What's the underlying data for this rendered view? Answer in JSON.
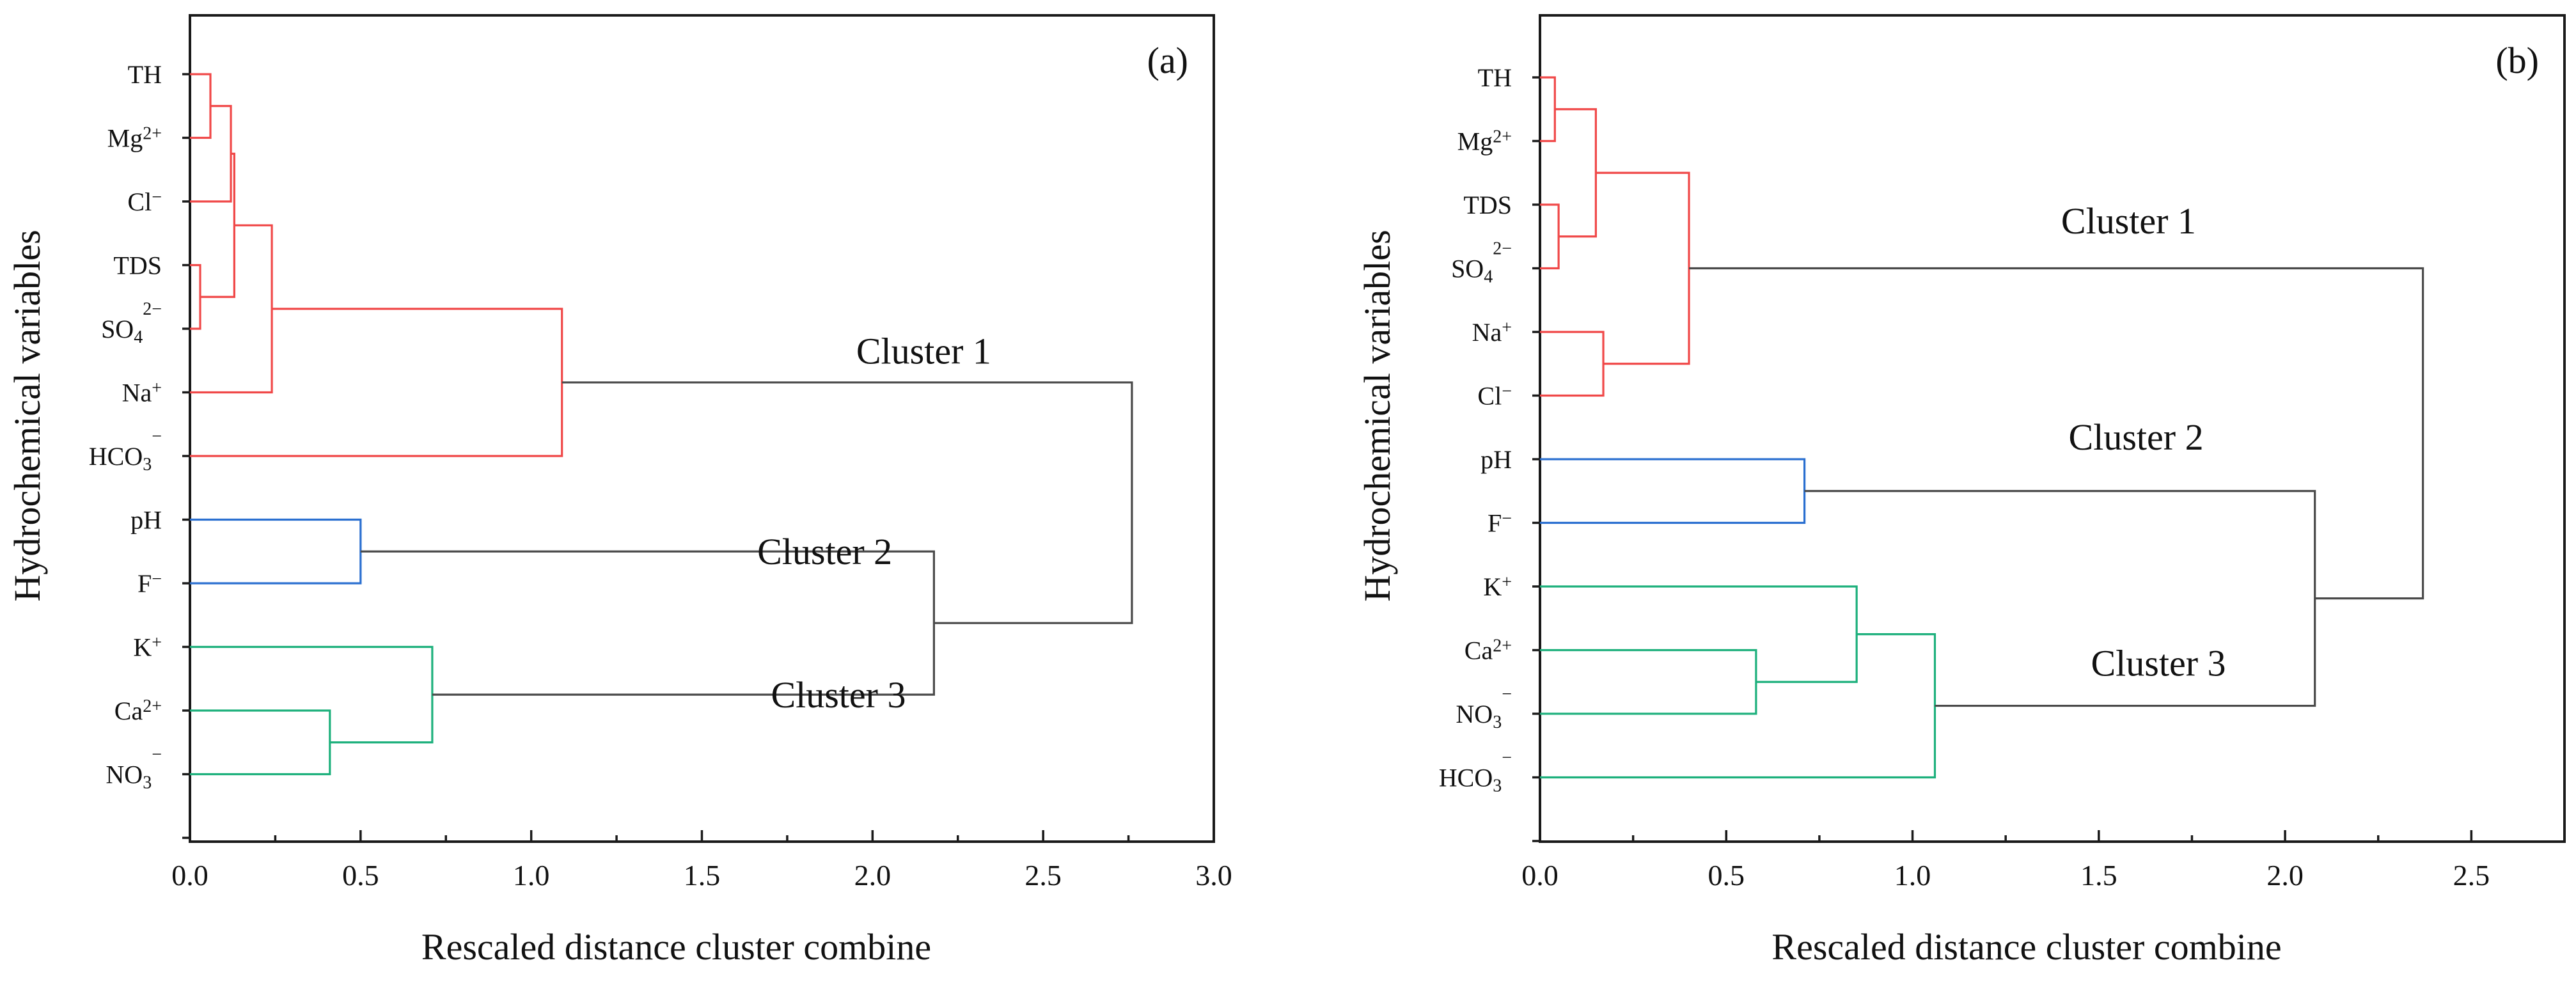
{
  "chart_data": [
    {
      "type": "dendrogram",
      "panel_label": "(a)",
      "xlabel": "Rescaled distance cluster combine",
      "ylabel": "Hydrochemical variables",
      "xlim": [
        0,
        3.0
      ],
      "xticks": [
        "0.0",
        "0.5",
        "1.0",
        "1.5",
        "2.0",
        "2.5",
        "3.0"
      ],
      "tick_values": [
        0,
        0.5,
        1.0,
        1.5,
        2.0,
        2.5,
        3.0
      ],
      "leaves": [
        {
          "base": "TH",
          "sub": "",
          "sup": ""
        },
        {
          "base": "Mg",
          "sub": "",
          "sup": "2+"
        },
        {
          "base": "Cl",
          "sub": "",
          "sup": "−"
        },
        {
          "base": "TDS",
          "sub": "",
          "sup": ""
        },
        {
          "base": "SO",
          "sub": "4",
          "sup": "2−"
        },
        {
          "base": "Na",
          "sub": "",
          "sup": "+"
        },
        {
          "base": "HCO",
          "sub": "3",
          "sup": "−"
        },
        {
          "base": "pH",
          "sub": "",
          "sup": ""
        },
        {
          "base": "F",
          "sub": "",
          "sup": "−"
        },
        {
          "base": "K",
          "sub": "",
          "sup": "+"
        },
        {
          "base": "Ca",
          "sub": "",
          "sup": "2+"
        },
        {
          "base": "NO",
          "sub": "3",
          "sup": "−"
        }
      ],
      "merges": [
        {
          "left": "L0",
          "right": "L1",
          "height": 0.06,
          "color": "#f04848"
        },
        {
          "left": "L3",
          "right": "L4",
          "height": 0.03,
          "color": "#f04848"
        },
        {
          "left": "M0",
          "right": "L2",
          "height": 0.12,
          "color": "#f04848"
        },
        {
          "left": "M2",
          "right": "M1",
          "height": 0.13,
          "color": "#f04848"
        },
        {
          "left": "M3",
          "right": "L5",
          "height": 0.24,
          "color": "#f04848"
        },
        {
          "left": "M4",
          "right": "L6",
          "height": 1.09,
          "color": "#f04848"
        },
        {
          "left": "L7",
          "right": "L8",
          "height": 0.5,
          "color": "#2a6fd0"
        },
        {
          "left": "L10",
          "right": "L11",
          "height": 0.41,
          "color": "#1db07c"
        },
        {
          "left": "L9",
          "right": "M7",
          "height": 0.71,
          "color": "#1db07c"
        },
        {
          "left": "M6",
          "right": "M8",
          "height": 2.18,
          "color": "#4a4a4a"
        },
        {
          "left": "M5",
          "right": "M9",
          "height": 2.76,
          "color": "#4a4a4a"
        }
      ],
      "clusters": [
        {
          "label": "Cluster 1",
          "x": 2.15,
          "leaf_pos": 4.55
        },
        {
          "label": "Cluster 2",
          "x": 1.86,
          "leaf_pos": 7.7
        },
        {
          "label": "Cluster 3",
          "x": 1.9,
          "leaf_pos": 9.95
        }
      ]
    },
    {
      "type": "dendrogram",
      "panel_label": "(b)",
      "xlabel": "Rescaled distance cluster combine",
      "ylabel": "Hydrochemical variables",
      "xlim": [
        0,
        2.75
      ],
      "xticks": [
        "0.0",
        "0.5",
        "1.0",
        "1.5",
        "2.0",
        "2.5"
      ],
      "tick_values": [
        0,
        0.5,
        1.0,
        1.5,
        2.0,
        2.5
      ],
      "leaves": [
        {
          "base": "TH",
          "sub": "",
          "sup": ""
        },
        {
          "base": "Mg",
          "sub": "",
          "sup": "2+"
        },
        {
          "base": "TDS",
          "sub": "",
          "sup": ""
        },
        {
          "base": "SO",
          "sub": "4",
          "sup": "2−"
        },
        {
          "base": "Na",
          "sub": "",
          "sup": "+"
        },
        {
          "base": "Cl",
          "sub": "",
          "sup": "−"
        },
        {
          "base": "pH",
          "sub": "",
          "sup": ""
        },
        {
          "base": "F",
          "sub": "",
          "sup": "−"
        },
        {
          "base": "K",
          "sub": "",
          "sup": "+"
        },
        {
          "base": "Ca",
          "sub": "",
          "sup": "2+"
        },
        {
          "base": "NO",
          "sub": "3",
          "sup": "−"
        },
        {
          "base": "HCO",
          "sub": "3",
          "sup": "−"
        }
      ],
      "merges": [
        {
          "left": "L0",
          "right": "L1",
          "height": 0.04,
          "color": "#f04848"
        },
        {
          "left": "L2",
          "right": "L3",
          "height": 0.05,
          "color": "#f04848"
        },
        {
          "left": "M0",
          "right": "M1",
          "height": 0.15,
          "color": "#f04848"
        },
        {
          "left": "L4",
          "right": "L5",
          "height": 0.17,
          "color": "#f04848"
        },
        {
          "left": "M2",
          "right": "M3",
          "height": 0.4,
          "color": "#f04848"
        },
        {
          "left": "L6",
          "right": "L7",
          "height": 0.71,
          "color": "#2a6fd0"
        },
        {
          "left": "L9",
          "right": "L10",
          "height": 0.58,
          "color": "#1db07c"
        },
        {
          "left": "L8",
          "right": "M6",
          "height": 0.85,
          "color": "#1db07c"
        },
        {
          "left": "M7",
          "right": "L11",
          "height": 1.06,
          "color": "#1db07c"
        },
        {
          "left": "M5",
          "right": "M8",
          "height": 2.08,
          "color": "#4a4a4a"
        },
        {
          "left": "M4",
          "right": "M9",
          "height": 2.37,
          "color": "#4a4a4a"
        }
      ],
      "clusters": [
        {
          "label": "Cluster 1",
          "x": 1.58,
          "leaf_pos": 2.45
        },
        {
          "label": "Cluster 2",
          "x": 1.6,
          "leaf_pos": 5.85
        },
        {
          "label": "Cluster 3",
          "x": 1.66,
          "leaf_pos": 9.4
        }
      ]
    }
  ]
}
